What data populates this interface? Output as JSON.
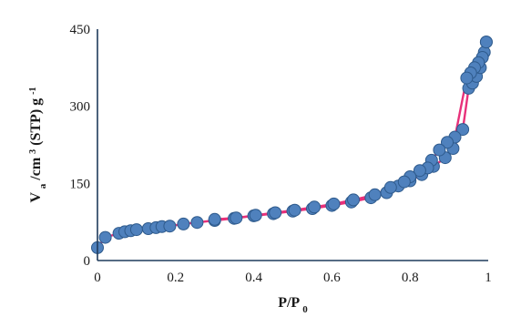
{
  "chart_data": {
    "type": "scatter",
    "xlabel_main": "P/P",
    "xlabel_sub": "0",
    "ylabel_parts": {
      "v": "V",
      "a": "a",
      "mid": "/cm",
      "sup3": "3",
      "mid2": " (STP) g",
      "supm1": "-1"
    },
    "xlim": [
      0,
      1
    ],
    "ylim": [
      0,
      450
    ],
    "xticks": [
      0,
      0.2,
      0.4,
      0.6,
      0.8,
      1
    ],
    "xtick_labels": [
      "0",
      "0.2",
      "0.4",
      "0.6",
      "0.8",
      "1"
    ],
    "yticks": [
      0,
      150,
      300,
      450
    ],
    "ytick_labels": [
      "0",
      "150",
      "300",
      "450"
    ],
    "colors": {
      "line": "#e8317a",
      "marker_fill": "#4f81bd",
      "marker_edge": "#2e5a8c",
      "axis": "#1f3b5c"
    },
    "series": [
      {
        "x": [
          0.0,
          0.02,
          0.055,
          0.07,
          0.085,
          0.1,
          0.13,
          0.15,
          0.165,
          0.185,
          0.22,
          0.255,
          0.3,
          0.35,
          0.4,
          0.45,
          0.5,
          0.55,
          0.6,
          0.65,
          0.7,
          0.74,
          0.77,
          0.8,
          0.83,
          0.86,
          0.89,
          0.91,
          0.935,
          0.95,
          0.96,
          0.97,
          0.98,
          0.99,
          0.995
        ],
        "y": [
          25,
          45,
          53,
          56,
          58,
          60,
          62,
          64,
          66,
          67,
          71,
          74,
          78,
          82,
          87,
          91,
          96,
          101,
          107,
          114,
          122,
          132,
          145,
          155,
          167,
          183,
          200,
          218,
          255,
          335,
          345,
          358,
          375,
          405,
          425
        ]
      },
      {
        "x": [
          0.995,
          0.985,
          0.975,
          0.965,
          0.955,
          0.945,
          0.915,
          0.895,
          0.875,
          0.855,
          0.845,
          0.825,
          0.8,
          0.785,
          0.75,
          0.71,
          0.655,
          0.605,
          0.555,
          0.505,
          0.455,
          0.405,
          0.355,
          0.3
        ],
        "y": [
          425,
          395,
          385,
          375,
          365,
          355,
          240,
          230,
          215,
          195,
          180,
          175,
          163,
          153,
          142,
          128,
          118,
          110,
          104,
          98,
          93,
          88,
          83,
          80
        ]
      }
    ]
  }
}
